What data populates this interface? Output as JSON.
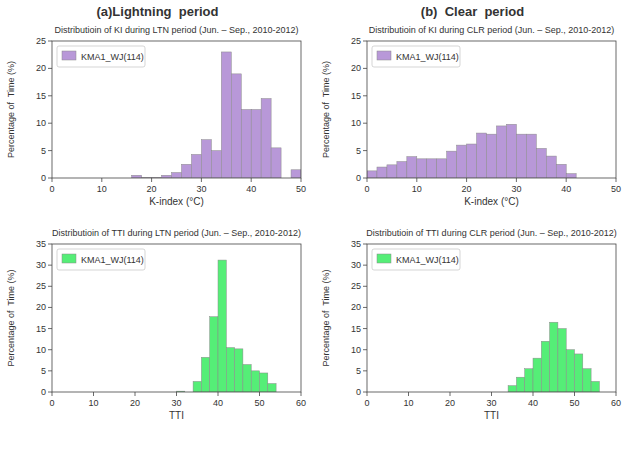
{
  "chart_data": [
    {
      "type": "histogram",
      "title": "Distributioin of KI during LTN period (Jun. – Sep., 2010-2012)",
      "annotations": [
        "(a)Lightning  period"
      ],
      "x_label": "K-index (°C)",
      "y_label": "Percentage of  Time (%)",
      "bins": [
        16,
        18,
        20,
        22,
        24,
        26,
        28,
        30,
        32,
        34,
        36,
        38,
        40,
        42,
        44,
        46,
        48,
        50
      ],
      "series": [
        {
          "name": "KMA1_WJ(114)",
          "color": "#b898d8",
          "values": [
            0.5,
            0.1,
            0.1,
            0.5,
            1.0,
            2.5,
            4.3,
            7.0,
            5.0,
            23.0,
            19.0,
            12.5,
            12.5,
            14.5,
            5.5,
            0,
            1.5
          ]
        }
      ],
      "xlim": [
        0,
        50
      ],
      "xticks": [
        0,
        10,
        20,
        30,
        40,
        50
      ],
      "ylim": [
        0,
        25
      ],
      "yticks": [
        0,
        5,
        10,
        15,
        20,
        25
      ],
      "legend": "upper left"
    },
    {
      "type": "histogram",
      "title": "Distributioin of KI during CLR period (Jun. – Sep., 2010-2012)",
      "annotations": [
        "(b)  Clear  period"
      ],
      "x_label": "K-index (°C)",
      "y_label": "Percentage of  Time (%)",
      "bins": [
        0,
        2,
        4,
        6,
        8,
        10,
        12,
        14,
        16,
        18,
        20,
        22,
        24,
        26,
        28,
        30,
        32,
        34,
        36,
        38,
        40,
        42,
        44
      ],
      "series": [
        {
          "name": "KMA1_WJ(114)",
          "color": "#b898d8",
          "values": [
            1.3,
            2.0,
            2.4,
            3.0,
            3.9,
            3.5,
            3.5,
            3.5,
            4.9,
            6.0,
            6.2,
            8.2,
            8.0,
            9.5,
            9.8,
            8.0,
            8.0,
            5.4,
            4.0,
            2.5,
            0.8,
            0.0
          ]
        }
      ],
      "xlim": [
        0,
        50
      ],
      "xticks": [
        0,
        10,
        20,
        30,
        40,
        50
      ],
      "ylim": [
        0,
        25
      ],
      "yticks": [
        0,
        5,
        10,
        15,
        20,
        25
      ],
      "legend": "upper left"
    },
    {
      "type": "histogram",
      "title": "Distributioin of TTI during LTN period (Jun. – Sep., 2010-2012)",
      "x_label": "TTI",
      "y_label": "Percentage of  Time (%)",
      "bins": [
        30,
        32,
        34,
        36,
        38,
        40,
        42,
        44,
        46,
        48,
        50,
        52,
        54,
        56,
        58,
        60
      ],
      "series": [
        {
          "name": "KMA1_WJ(114)",
          "color": "#55ee77",
          "values": [
            0.2,
            0,
            2.5,
            8.2,
            17.8,
            31.2,
            10.5,
            10.2,
            6.5,
            5.0,
            4.5,
            2.0,
            0,
            0,
            0
          ]
        }
      ],
      "xlim": [
        0,
        60
      ],
      "xticks": [
        0,
        10,
        20,
        30,
        40,
        50,
        60
      ],
      "ylim": [
        0,
        35
      ],
      "yticks": [
        0,
        5,
        10,
        15,
        20,
        25,
        30,
        35
      ],
      "legend": "upper left"
    },
    {
      "type": "histogram",
      "title": "Distributioin of TTI during CLR period (Jun. – Sep., 2010-2012)",
      "x_label": "TTI",
      "y_label": "Percentage of  Time (%)",
      "bins": [
        34,
        36,
        38,
        40,
        42,
        44,
        46,
        48,
        50,
        52,
        54,
        56,
        58,
        60
      ],
      "series": [
        {
          "name": "KMA1_WJ(114)",
          "color": "#55ee77",
          "values": [
            1.5,
            3.5,
            5.5,
            8.0,
            12.0,
            16.5,
            15.0,
            10.0,
            9.0,
            5.5,
            2.5,
            0,
            0
          ]
        }
      ],
      "xlim": [
        0,
        60
      ],
      "xticks": [
        0,
        10,
        20,
        30,
        40,
        50,
        60
      ],
      "ylim": [
        0,
        35
      ],
      "yticks": [
        0,
        5,
        10,
        15,
        20,
        25,
        30,
        35
      ],
      "legend": "upper left"
    }
  ]
}
